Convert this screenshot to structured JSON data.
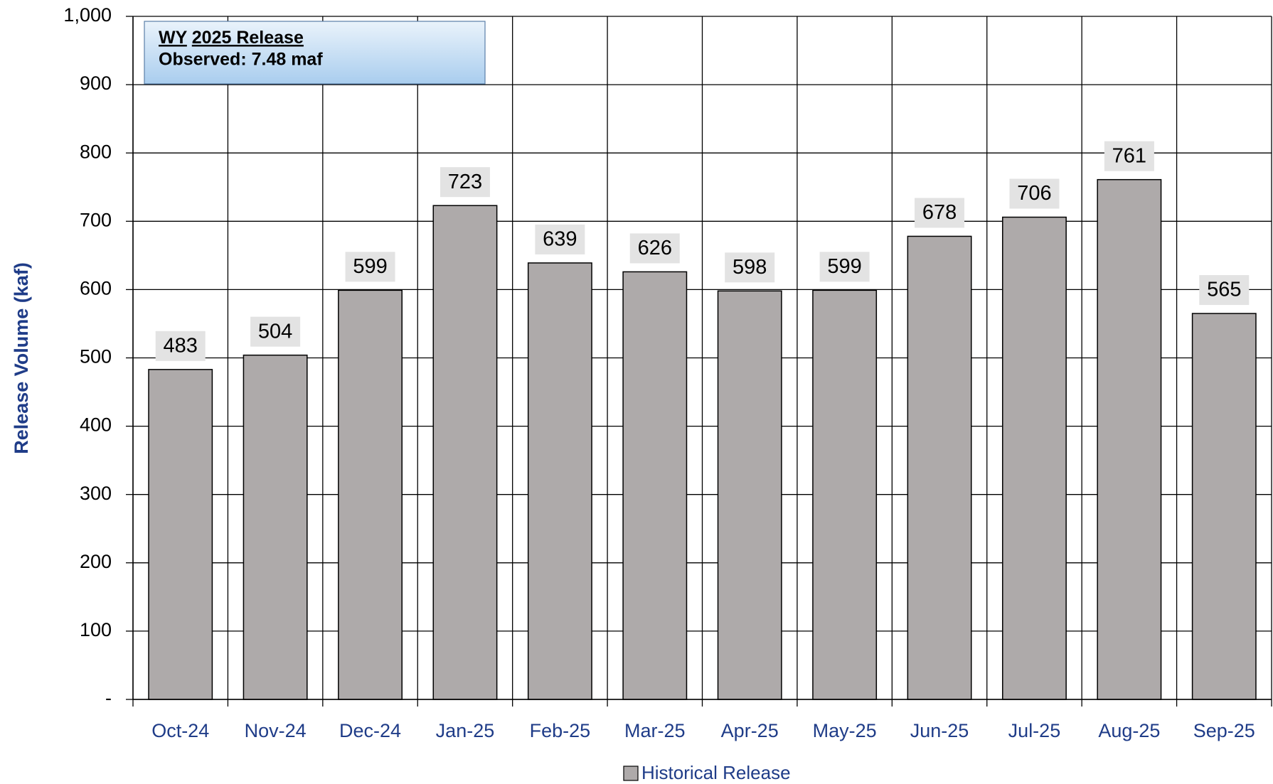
{
  "chart_data": {
    "type": "bar",
    "y_label": "Release Volume (kaf)",
    "annotation": {
      "title_1": "WY",
      "title_2": "2025 Release",
      "line_2": "Observed: 7.48 maf"
    },
    "categories": [
      "Oct-24",
      "Nov-24",
      "Dec-24",
      "Jan-25",
      "Feb-25",
      "Mar-25",
      "Apr-25",
      "May-25",
      "Jun-25",
      "Jul-25",
      "Aug-25",
      "Sep-25"
    ],
    "series": [
      {
        "name": "Historical Release",
        "color": "#aeaaaa",
        "values": [
          483,
          504,
          599,
          723,
          639,
          626,
          598,
          599,
          678,
          706,
          761,
          565
        ]
      }
    ],
    "ylim": [
      0,
      1000
    ],
    "yticks": [
      {
        "value": 0,
        "label": "-"
      },
      100,
      200,
      300,
      400,
      500,
      600,
      700,
      800,
      900,
      {
        "value": 1000,
        "label": "1,000"
      }
    ],
    "grid": true,
    "legend": "bottom"
  }
}
